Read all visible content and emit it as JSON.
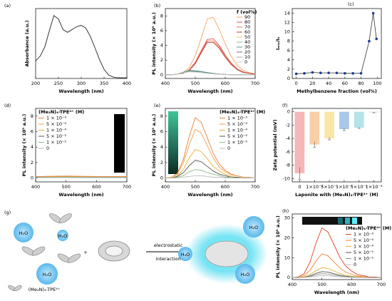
{
  "chart_data": [
    {
      "label": "(a)",
      "type": "line",
      "xlabel": "Wavelength (nm)",
      "ylabel": "Absorbance (a.u.)",
      "x": [
        200,
        210,
        220,
        230,
        240,
        250,
        260,
        270,
        280,
        290,
        300,
        310,
        320,
        330,
        340,
        350,
        360,
        370,
        380,
        390,
        400
      ],
      "values": [
        0.25,
        0.32,
        0.45,
        0.68,
        0.9,
        0.85,
        0.7,
        0.66,
        0.7,
        0.74,
        0.76,
        0.72,
        0.6,
        0.44,
        0.27,
        0.13,
        0.05,
        0.02,
        0.01,
        0.01,
        0.01
      ],
      "color": "#222222",
      "xlim": [
        200,
        400
      ],
      "ylim": [
        0,
        1
      ],
      "xticks": [
        200,
        250,
        300,
        350,
        400
      ]
    },
    {
      "label": "(b)",
      "type": "line",
      "xlabel": "Wavelength (nm)",
      "ylabel": "PL intensity (× 10⁵ a.u.)",
      "x": [
        400,
        420,
        440,
        460,
        480,
        500,
        520,
        540,
        560,
        580,
        600,
        620,
        640,
        660,
        680,
        700
      ],
      "legend": "upper right",
      "legend_title": "f (vol%)",
      "series": [
        {
          "name": "90",
          "color": "#f4a460",
          "values": [
            0,
            0,
            0.1,
            0.3,
            1.0,
            2.6,
            5.0,
            7.6,
            7.8,
            6.2,
            4.2,
            2.5,
            1.3,
            0.6,
            0.3,
            0.1
          ]
        },
        {
          "name": "80",
          "color": "#d9534f",
          "values": [
            0,
            0,
            0.1,
            0.2,
            0.7,
            1.7,
            3.3,
            4.8,
            4.9,
            4.0,
            2.7,
            1.6,
            0.8,
            0.4,
            0.2,
            0.1
          ]
        },
        {
          "name": "70",
          "color": "#e8784e",
          "values": [
            0,
            0,
            0.1,
            0.2,
            0.7,
            1.6,
            3.1,
            4.6,
            4.6,
            3.8,
            2.5,
            1.5,
            0.8,
            0.4,
            0.2,
            0.1
          ]
        },
        {
          "name": "60",
          "color": "#b83a3a",
          "values": [
            0,
            0,
            0.1,
            0.2,
            0.6,
            1.5,
            3.0,
            4.4,
            4.4,
            3.6,
            2.4,
            1.4,
            0.7,
            0.3,
            0.2,
            0.1
          ]
        },
        {
          "name": "50",
          "color": "#f0c040",
          "values": [
            0,
            0,
            0.05,
            0.3,
            0.5,
            0.45,
            0.35,
            0.25,
            0.15,
            0.1,
            0.05,
            0,
            0,
            0,
            0,
            0
          ]
        },
        {
          "name": "40",
          "color": "#7fbf7f",
          "values": [
            0,
            0,
            0.1,
            0.35,
            0.55,
            0.5,
            0.4,
            0.3,
            0.2,
            0.1,
            0.05,
            0,
            0,
            0,
            0,
            0
          ]
        },
        {
          "name": "30",
          "color": "#4a9a8a",
          "values": [
            0,
            0,
            0.1,
            0.35,
            0.6,
            0.55,
            0.45,
            0.3,
            0.2,
            0.1,
            0.05,
            0,
            0,
            0,
            0,
            0
          ]
        },
        {
          "name": "20",
          "color": "#777777",
          "values": [
            0,
            0,
            0.1,
            0.3,
            0.5,
            0.45,
            0.35,
            0.25,
            0.15,
            0.1,
            0.05,
            0,
            0,
            0,
            0,
            0
          ]
        },
        {
          "name": "10",
          "color": "#aaaaaa",
          "values": [
            0,
            0,
            0.1,
            0.3,
            0.45,
            0.4,
            0.3,
            0.2,
            0.15,
            0.1,
            0.05,
            0,
            0,
            0,
            0,
            0
          ]
        },
        {
          "name": "0",
          "color": "#cccccc",
          "values": [
            0,
            0,
            0.1,
            0.25,
            0.4,
            0.35,
            0.3,
            0.2,
            0.1,
            0.05,
            0,
            0,
            0,
            0,
            0,
            0
          ]
        }
      ],
      "xlim": [
        400,
        700
      ],
      "ylim": [
        -0.5,
        9
      ],
      "xticks": [
        400,
        500,
        600,
        700
      ],
      "yticks": [
        0,
        2,
        4,
        6,
        8
      ]
    },
    {
      "label": "(c)",
      "type": "scatter",
      "xlabel": "Methylbenzene fraction (vol%)",
      "ylabel": "Iₘᵢₓ/I₀",
      "x": [
        0,
        10,
        20,
        30,
        40,
        50,
        60,
        70,
        80,
        90,
        95,
        99
      ],
      "values": [
        1.0,
        1.1,
        1.3,
        1.2,
        1.2,
        1.2,
        1.1,
        1.1,
        1.1,
        8.0,
        14.0,
        8.5
      ],
      "color": "#1f3a93",
      "line_color": "#333333",
      "xlim": [
        -5,
        105
      ],
      "ylim": [
        0,
        15
      ],
      "xticks": [
        0,
        20,
        40,
        60,
        80,
        100
      ],
      "yticks": [
        0,
        2,
        4,
        6,
        8,
        10,
        12,
        14
      ]
    },
    {
      "label": "(d)",
      "type": "line",
      "xlabel": "Wavelength (nm)",
      "ylabel": "PL intensity (× 10⁵ a.u.)",
      "x": [
        400,
        500,
        600,
        700
      ],
      "legend": "upper left",
      "legend_title": "(Me₃N)₄-TPE⁴⁺ (M)",
      "series": [
        {
          "name": "1 × 10⁻³",
          "color": "#e8823a",
          "values": [
            0.2,
            0.25,
            0.2,
            0.2
          ]
        },
        {
          "name": "5 × 10⁻⁴",
          "color": "#f29b4f",
          "values": [
            0.15,
            0.2,
            0.15,
            0.15
          ]
        },
        {
          "name": "1 × 10⁻⁴",
          "color": "#e8b030",
          "values": [
            0.12,
            0.15,
            0.12,
            0.12
          ]
        },
        {
          "name": "5 × 10⁻⁵",
          "color": "#555555",
          "values": [
            0.1,
            0.12,
            0.1,
            0.1
          ]
        },
        {
          "name": "1 × 10⁻⁵",
          "color": "#8bb88b",
          "values": [
            0.08,
            0.1,
            0.08,
            0.08
          ]
        },
        {
          "name": "0",
          "color": "#bbbbbb",
          "values": [
            0.05,
            0.05,
            0.05,
            0.05
          ]
        }
      ],
      "xlim": [
        400,
        700
      ],
      "ylim": [
        -0.5,
        9
      ],
      "xticks": [
        400,
        500,
        600,
        700
      ],
      "yticks": [
        0,
        2,
        4,
        6,
        8
      ]
    },
    {
      "label": "(e)",
      "type": "line",
      "xlabel": "Wavelength (nm)",
      "ylabel": "PL intensity (× 10⁵ a.u.)",
      "x": [
        400,
        420,
        440,
        460,
        480,
        500,
        520,
        540,
        560,
        580,
        600,
        620,
        640,
        660,
        680,
        700
      ],
      "legend": "upper right",
      "legend_title": "(Me₃N)₄-TPE⁴⁺ (M)",
      "series": [
        {
          "name": "1 × 10⁻³",
          "color": "#e8823a",
          "values": [
            0,
            0.1,
            0.6,
            2.4,
            5.4,
            7.8,
            7.2,
            5.2,
            3.2,
            1.8,
            1.0,
            0.5,
            0.3,
            0.1,
            0.05,
            0
          ]
        },
        {
          "name": "5 × 10⁻⁴",
          "color": "#f29b4f",
          "values": [
            0,
            0.1,
            0.5,
            2.0,
            4.3,
            6.3,
            5.8,
            4.2,
            2.6,
            1.4,
            0.8,
            0.4,
            0.3,
            0.1,
            0.1,
            0
          ]
        },
        {
          "name": "1 × 10⁻⁴",
          "color": "#e8b030",
          "values": [
            0,
            0,
            0.3,
            1.1,
            2.6,
            3.7,
            3.4,
            2.5,
            1.5,
            0.9,
            0.5,
            0.2,
            0.1,
            0,
            0,
            0
          ]
        },
        {
          "name": "5 × 10⁻⁵",
          "color": "#555555",
          "values": [
            0,
            0,
            0.2,
            0.7,
            1.6,
            2.3,
            2.1,
            1.5,
            0.9,
            0.5,
            0.3,
            0.1,
            0.1,
            0,
            0,
            0
          ]
        },
        {
          "name": "1 × 10⁻⁵",
          "color": "#8bb88b",
          "values": [
            0,
            0,
            0.1,
            0.3,
            0.8,
            1.1,
            1.0,
            0.7,
            0.5,
            0.3,
            0.1,
            0.1,
            0,
            0,
            0,
            0
          ]
        },
        {
          "name": "0",
          "color": "#bbbbbb",
          "values": [
            0,
            0,
            0,
            0.1,
            0.2,
            0.3,
            0.3,
            0.2,
            0.1,
            0.1,
            0,
            0,
            0,
            0,
            0,
            0
          ]
        }
      ],
      "xlim": [
        400,
        700
      ],
      "ylim": [
        -0.5,
        9
      ],
      "xticks": [
        400,
        500,
        600,
        700
      ],
      "yticks": [
        0,
        2,
        4,
        6,
        8
      ]
    },
    {
      "label": "(f)",
      "type": "bar",
      "xlabel": "Laponite with (Me₃N)₄-TPE⁴⁺ (M)",
      "ylabel": "Zeta potential (mV)",
      "categories": [
        "0",
        "1×10⁻⁵",
        "5×10⁻⁵",
        "1×10⁻⁴",
        "5×10⁻⁴",
        "1×10⁻³"
      ],
      "values": [
        -9.2,
        -4.9,
        -4.0,
        -2.6,
        -2.4,
        -0.1
      ],
      "errors": [
        0.9,
        0.4,
        0.2,
        0.2,
        0.1,
        0.05
      ],
      "colors": [
        "#f4b6b6",
        "#f9cfa8",
        "#fbe6a6",
        "#a9c8e8",
        "#b4e3ea",
        "#d8d8d8"
      ],
      "ylim": [
        -10.5,
        0.5
      ],
      "yticks": [
        -10,
        -8,
        -6,
        -4,
        -2,
        0
      ]
    },
    {
      "label": "(h)",
      "type": "line",
      "xlabel": "Wavelength (nm)",
      "ylabel": "PL intensity (× 10⁵ a.u.)",
      "x": [
        400,
        420,
        440,
        460,
        480,
        500,
        520,
        540,
        560,
        580,
        600,
        620,
        640,
        660,
        680,
        700
      ],
      "legend": "upper right",
      "legend_title": "(Me₃N)₄-TPE⁴⁺ (M)",
      "series": [
        {
          "name": "1 × 10⁻³",
          "color": "#e04020",
          "values": [
            0,
            0.3,
            2,
            7.8,
            17.3,
            25,
            23,
            16.8,
            10.3,
            5.8,
            3.3,
            1.5,
            1,
            0.3,
            0.3,
            0
          ]
        },
        {
          "name": "5 × 10⁻⁴",
          "color": "#f08030",
          "values": [
            0,
            0.1,
            1,
            3.7,
            8.3,
            12,
            11,
            8,
            4.9,
            2.8,
            1.6,
            0.7,
            0.5,
            0.1,
            0.1,
            0
          ]
        },
        {
          "name": "1 × 10⁻⁴",
          "color": "#e8b030",
          "values": [
            0,
            0,
            0.4,
            1.6,
            3.5,
            5,
            4.6,
            3.4,
            2.1,
            1.2,
            0.7,
            0.3,
            0.2,
            0,
            0,
            0
          ]
        },
        {
          "name": "5 × 10⁻⁵",
          "color": "#555555",
          "values": [
            0,
            0,
            0.2,
            0.9,
            2.1,
            3,
            2.8,
            2,
            1.2,
            0.7,
            0.4,
            0.2,
            0.1,
            0,
            0,
            0
          ]
        },
        {
          "name": "1 × 10⁻⁵",
          "color": "#8a9a8a",
          "values": [
            0,
            0,
            0.2,
            0.6,
            1.4,
            2,
            1.8,
            1.3,
            0.8,
            0.5,
            0.3,
            0.1,
            0.1,
            0,
            0,
            0
          ]
        },
        {
          "name": "0",
          "color": "#bbbbbb",
          "values": [
            0,
            0,
            0.1,
            0.3,
            0.7,
            1,
            0.9,
            0.7,
            0.4,
            0.2,
            0.1,
            0.1,
            0,
            0,
            0,
            0
          ]
        }
      ],
      "xlim": [
        400,
        700
      ],
      "ylim": [
        -1,
        32
      ],
      "xticks": [
        400,
        500,
        600,
        700
      ],
      "yticks": [
        0,
        10,
        20,
        30
      ]
    }
  ],
  "diagram": {
    "label": "(g)",
    "texts": [
      "H₂O",
      "H₂O",
      "H₂O",
      "+",
      "electrostatic",
      "interaction",
      "(Me₃N)₄-TPE⁴⁺",
      "H₂O",
      "H₂O",
      "H₂O"
    ]
  }
}
